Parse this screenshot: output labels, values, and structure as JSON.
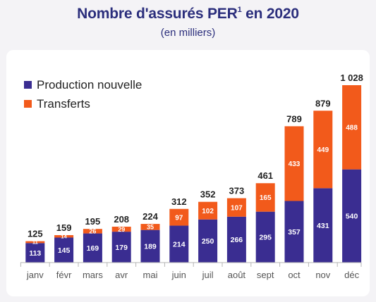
{
  "title": {
    "main": "Nombre d'assurés PER",
    "sup": "1",
    "suffix": " en 2020",
    "subtitle": "(en milliers)"
  },
  "colors": {
    "production": "#3a2d91",
    "transferts": "#f25a1b",
    "title": "#2b2e7c"
  },
  "chart_data": {
    "type": "bar",
    "stacked": true,
    "categories": [
      "janv",
      "févr",
      "mars",
      "avr",
      "mai",
      "juin",
      "juil",
      "août",
      "sept",
      "oct",
      "nov",
      "déc"
    ],
    "series": [
      {
        "name": "Production nouvelle",
        "values": [
          113,
          145,
          169,
          179,
          189,
          214,
          250,
          266,
          295,
          357,
          431,
          540
        ]
      },
      {
        "name": "Transferts",
        "values": [
          11,
          14,
          26,
          29,
          35,
          97,
          102,
          107,
          165,
          433,
          449,
          488
        ]
      }
    ],
    "totals": [
      "125",
      "159",
      "195",
      "208",
      "224",
      "312",
      "352",
      "373",
      "461",
      "789",
      "879",
      "1 028"
    ],
    "legend_position": "top-left",
    "grid": false,
    "ylim": [
      0,
      1028
    ]
  }
}
